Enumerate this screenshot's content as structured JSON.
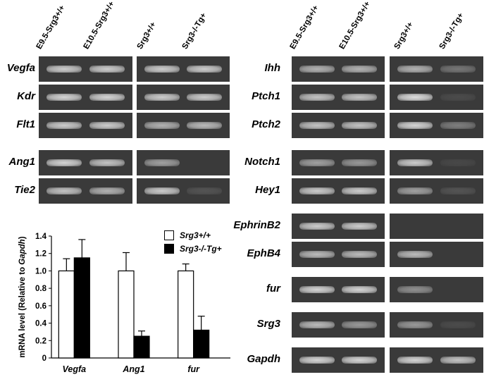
{
  "column_headers": [
    "E9.5-Srg3+/+",
    "E10.5-Srg3+/+",
    "Srg3+/+",
    "Srg3-/-Tg+"
  ],
  "left_genes": [
    "Vegfa",
    "Kdr",
    "Flt1",
    "Ang1",
    "Tie2"
  ],
  "right_genes": [
    "Ihh",
    "Ptch1",
    "Ptch2",
    "Notch1",
    "Hey1",
    "EphrinB2",
    "EphB4",
    "fur",
    "Srg3",
    "Gapdh"
  ],
  "band_intensity": {
    "Vegfa": [
      0.85,
      0.85,
      0.85,
      0.85
    ],
    "Kdr": [
      0.9,
      0.9,
      0.85,
      0.85
    ],
    "Flt1": [
      0.85,
      0.85,
      0.7,
      0.75
    ],
    "Ang1": [
      0.9,
      0.8,
      0.6,
      0.0
    ],
    "Tie2": [
      0.8,
      0.7,
      0.85,
      0.15
    ],
    "Ihh": [
      0.7,
      0.7,
      0.7,
      0.35
    ],
    "Ptch1": [
      0.8,
      0.8,
      0.95,
      0.1
    ],
    "Ptch2": [
      0.8,
      0.8,
      0.9,
      0.4
    ],
    "Notch1": [
      0.6,
      0.55,
      0.85,
      0.08
    ],
    "Hey1": [
      0.85,
      0.85,
      0.6,
      0.15
    ],
    "EphrinB2": [
      0.85,
      0.85,
      0.0,
      0.0
    ],
    "EphB4": [
      0.75,
      0.75,
      0.75,
      0.0
    ],
    "fur": [
      0.9,
      0.9,
      0.5,
      0.0
    ],
    "Srg3": [
      0.75,
      0.55,
      0.55,
      0.1
    ],
    "Gapdh": [
      0.9,
      0.9,
      0.9,
      0.8
    ]
  },
  "chart_data": {
    "type": "bar",
    "categories": [
      "Vegfa",
      "Ang1",
      "fur"
    ],
    "series": [
      {
        "name": "Srg3+/+",
        "values": [
          1.0,
          1.0,
          1.0
        ],
        "errors": [
          0.14,
          0.21,
          0.08
        ],
        "color": "#ffffff"
      },
      {
        "name": "Srg3-/-Tg+",
        "values": [
          1.15,
          0.25,
          0.32
        ],
        "errors": [
          0.21,
          0.06,
          0.16
        ],
        "color": "#000000"
      }
    ],
    "ylabel": "mRNA level (Relative to Gapdh)",
    "ylim": [
      0,
      1.4
    ],
    "yticks": [
      "0",
      "0.2",
      "0.4",
      "0.6",
      "0.8",
      "1.0",
      "1.2",
      "1.4"
    ],
    "legend_position": "top-right",
    "grid": false
  }
}
